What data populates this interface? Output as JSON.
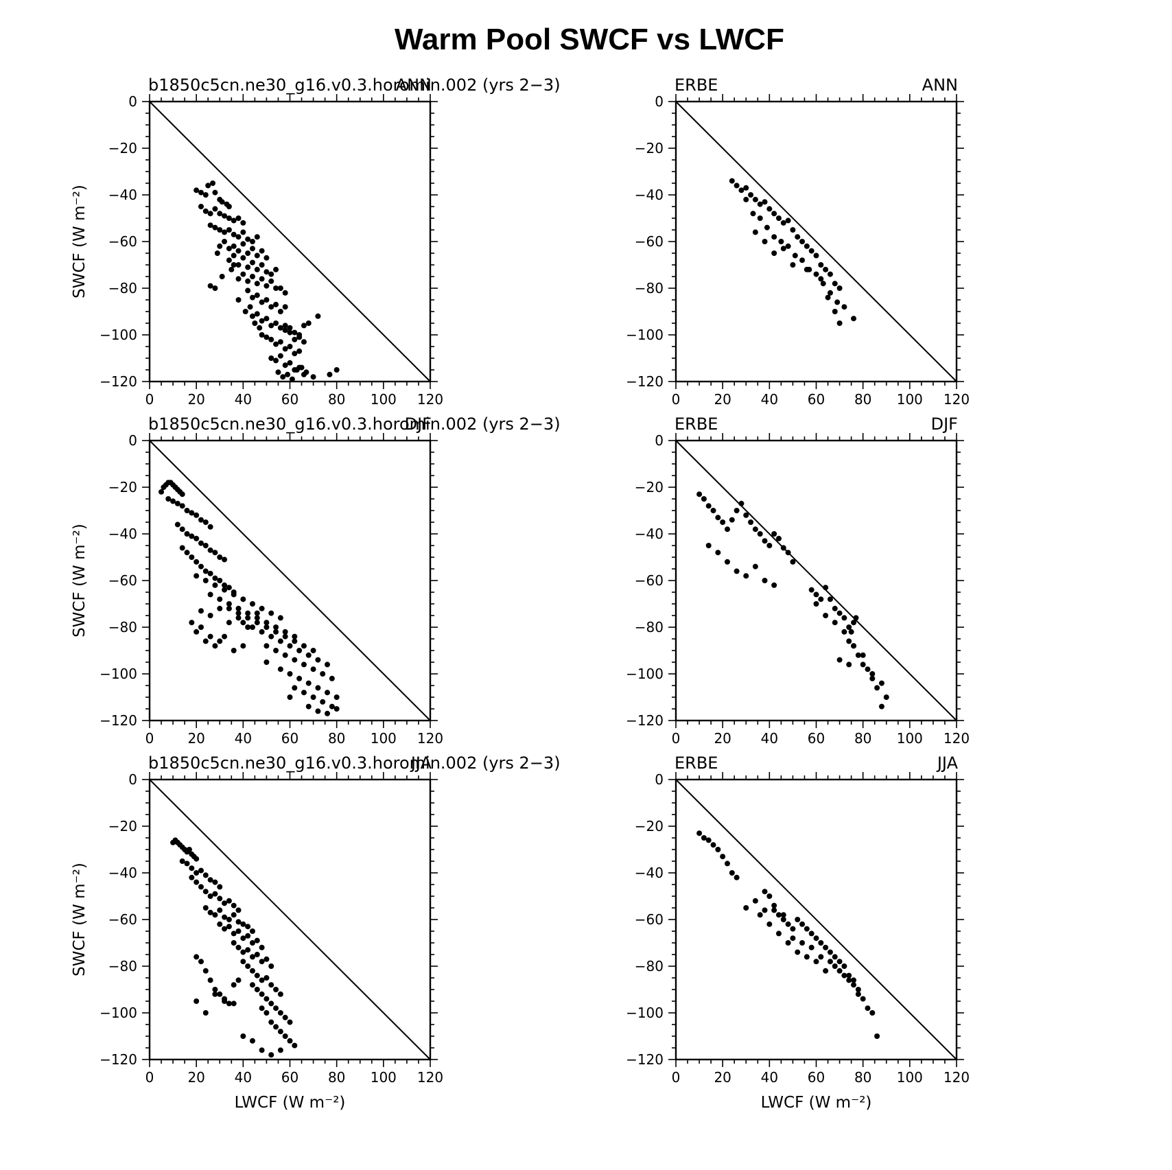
{
  "figure": {
    "title": "Warm Pool SWCF vs LWCF"
  },
  "chart_data": [
    {
      "type": "scatter",
      "panel": "model-ANN",
      "left_label": "b1850c5cn.ne30_g16.v0.3.horomin.002 (yrs 2−3)",
      "right_label": "ANN",
      "xlabel": "",
      "ylabel": "SWCF (W m⁻²)",
      "xlim": [
        0,
        120
      ],
      "ylim": [
        -120,
        0
      ],
      "xticks": [
        "0",
        "20",
        "40",
        "60",
        "80",
        "100",
        "120"
      ],
      "yticks": [
        "0",
        "−20",
        "−40",
        "−60",
        "−80",
        "−100",
        "−120"
      ],
      "one_to_one_line": true,
      "x": [
        20,
        22,
        24,
        25,
        27,
        28,
        30,
        31,
        33,
        34,
        22,
        24,
        26,
        28,
        30,
        32,
        34,
        36,
        38,
        40,
        26,
        28,
        30,
        32,
        34,
        36,
        38,
        40,
        42,
        44,
        46,
        30,
        32,
        34,
        36,
        38,
        40,
        42,
        44,
        46,
        48,
        50,
        34,
        36,
        38,
        40,
        42,
        44,
        46,
        48,
        50,
        52,
        54,
        38,
        40,
        42,
        44,
        46,
        48,
        50,
        52,
        54,
        56,
        58,
        42,
        44,
        46,
        48,
        50,
        52,
        54,
        56,
        58,
        44,
        46,
        48,
        50,
        52,
        54,
        56,
        58,
        60,
        48,
        50,
        52,
        54,
        56,
        58,
        60,
        62,
        64,
        52,
        54,
        56,
        58,
        60,
        62,
        64,
        66,
        70,
        55,
        57,
        59,
        61,
        63,
        65,
        67,
        58,
        60,
        62,
        64,
        66,
        68,
        62,
        64,
        66,
        72,
        77,
        80,
        28,
        31,
        35,
        38,
        41,
        45,
        47,
        36,
        43,
        29,
        26
      ],
      "y": [
        -38,
        -39,
        -40,
        -36,
        -35,
        -39,
        -42,
        -43,
        -44,
        -45,
        -45,
        -47,
        -48,
        -46,
        -48,
        -49,
        -50,
        -51,
        -50,
        -52,
        -53,
        -54,
        -55,
        -56,
        -55,
        -57,
        -58,
        -56,
        -59,
        -60,
        -58,
        -62,
        -60,
        -63,
        -62,
        -64,
        -61,
        -65,
        -63,
        -66,
        -64,
        -67,
        -68,
        -66,
        -70,
        -67,
        -71,
        -69,
        -72,
        -70,
        -73,
        -74,
        -72,
        -76,
        -74,
        -77,
        -75,
        -78,
        -76,
        -79,
        -77,
        -80,
        -80,
        -82,
        -81,
        -84,
        -83,
        -86,
        -85,
        -88,
        -87,
        -90,
        -88,
        -92,
        -91,
        -94,
        -93,
        -96,
        -95,
        -97,
        -96,
        -99,
        -100,
        -101,
        -102,
        -104,
        -103,
        -106,
        -105,
        -108,
        -107,
        -110,
        -111,
        -109,
        -113,
        -112,
        -115,
        -114,
        -117,
        -118,
        -116,
        -118,
        -117,
        -119,
        -115,
        -114,
        -116,
        -98,
        -97,
        -99,
        -100,
        -96,
        -95,
        -102,
        -101,
        -103,
        -92,
        -117,
        -115,
        -80,
        -75,
        -72,
        -85,
        -90,
        -95,
        -97,
        -70,
        -88,
        -65,
        -79
      ]
    },
    {
      "type": "scatter",
      "panel": "obs-ANN",
      "left_label": "ERBE",
      "right_label": "ANN",
      "xlabel": "",
      "ylabel": "",
      "xlim": [
        0,
        120
      ],
      "ylim": [
        -120,
        0
      ],
      "xticks": [
        "0",
        "20",
        "40",
        "60",
        "80",
        "100",
        "120"
      ],
      "yticks": [
        "0",
        "−20",
        "−40",
        "−60",
        "−80",
        "−100",
        "−120"
      ],
      "one_to_one_line": true,
      "x": [
        24,
        26,
        28,
        30,
        32,
        34,
        36,
        38,
        40,
        42,
        44,
        46,
        48,
        50,
        52,
        54,
        56,
        58,
        60,
        62,
        64,
        66,
        68,
        70,
        30,
        33,
        36,
        39,
        42,
        45,
        48,
        51,
        54,
        57,
        60,
        63,
        66,
        69,
        72,
        76,
        34,
        38,
        42,
        46,
        50,
        56,
        62,
        65,
        68,
        70
      ],
      "y": [
        -34,
        -36,
        -38,
        -37,
        -40,
        -42,
        -44,
        -43,
        -46,
        -48,
        -50,
        -52,
        -51,
        -55,
        -58,
        -60,
        -62,
        -64,
        -66,
        -70,
        -72,
        -74,
        -78,
        -80,
        -42,
        -48,
        -50,
        -54,
        -58,
        -60,
        -62,
        -66,
        -68,
        -72,
        -74,
        -78,
        -82,
        -86,
        -88,
        -93,
        -56,
        -60,
        -65,
        -63,
        -70,
        -72,
        -76,
        -84,
        -90,
        -95
      ]
    },
    {
      "type": "scatter",
      "panel": "model-DJF",
      "left_label": "b1850c5cn.ne30_g16.v0.3.horomin.002 (yrs 2−3)",
      "right_label": "DJF",
      "xlabel": "",
      "ylabel": "SWCF (W m⁻²)",
      "xlim": [
        0,
        120
      ],
      "ylim": [
        -120,
        0
      ],
      "xticks": [
        "0",
        "20",
        "40",
        "60",
        "80",
        "100",
        "120"
      ],
      "yticks": [
        "0",
        "−20",
        "−40",
        "−60",
        "−80",
        "−100",
        "−120"
      ],
      "one_to_one_line": true,
      "x": [
        5,
        6,
        7,
        8,
        9,
        10,
        11,
        12,
        13,
        14,
        8,
        10,
        12,
        14,
        16,
        18,
        20,
        22,
        24,
        26,
        12,
        14,
        16,
        18,
        20,
        22,
        24,
        26,
        28,
        30,
        32,
        14,
        16,
        18,
        20,
        22,
        24,
        26,
        28,
        30,
        32,
        34,
        36,
        20,
        24,
        28,
        32,
        36,
        40,
        44,
        48,
        52,
        56,
        26,
        30,
        34,
        38,
        42,
        46,
        50,
        54,
        58,
        62,
        34,
        38,
        42,
        46,
        50,
        54,
        58,
        62,
        66,
        70,
        40,
        44,
        48,
        52,
        56,
        60,
        64,
        68,
        72,
        76,
        50,
        54,
        58,
        62,
        66,
        70,
        74,
        78,
        56,
        60,
        64,
        68,
        72,
        76,
        80,
        62,
        66,
        70,
        74,
        78,
        68,
        72,
        76,
        80,
        22,
        26,
        30,
        34,
        38,
        42,
        46,
        20,
        24,
        28,
        32,
        36,
        18,
        22,
        26,
        30,
        40,
        50,
        60
      ],
      "y": [
        -22,
        -20,
        -19,
        -18,
        -18,
        -19,
        -20,
        -21,
        -22,
        -23,
        -25,
        -26,
        -27,
        -28,
        -30,
        -31,
        -32,
        -34,
        -35,
        -37,
        -36,
        -38,
        -40,
        -41,
        -42,
        -44,
        -45,
        -47,
        -48,
        -50,
        -51,
        -46,
        -48,
        -50,
        -52,
        -54,
        -56,
        -57,
        -59,
        -60,
        -62,
        -63,
        -65,
        -58,
        -60,
        -62,
        -64,
        -66,
        -68,
        -70,
        -72,
        -74,
        -76,
        -66,
        -68,
        -70,
        -72,
        -74,
        -76,
        -78,
        -80,
        -82,
        -84,
        -72,
        -74,
        -76,
        -78,
        -80,
        -82,
        -84,
        -86,
        -88,
        -90,
        -78,
        -80,
        -82,
        -84,
        -86,
        -88,
        -90,
        -92,
        -94,
        -96,
        -88,
        -90,
        -92,
        -94,
        -96,
        -98,
        -100,
        -102,
        -98,
        -100,
        -102,
        -104,
        -106,
        -108,
        -110,
        -106,
        -108,
        -110,
        -112,
        -114,
        -114,
        -116,
        -117,
        -115,
        -73,
        -75,
        -72,
        -78,
        -76,
        -80,
        -74,
        -82,
        -86,
        -88,
        -84,
        -90,
        -78,
        -80,
        -84,
        -86,
        -88,
        -95,
        -110
      ]
    },
    {
      "type": "scatter",
      "panel": "obs-DJF",
      "left_label": "ERBE",
      "right_label": "DJF",
      "xlabel": "",
      "ylabel": "",
      "xlim": [
        0,
        120
      ],
      "ylim": [
        -120,
        0
      ],
      "xticks": [
        "0",
        "20",
        "40",
        "60",
        "80",
        "100",
        "120"
      ],
      "yticks": [
        "0",
        "−20",
        "−40",
        "−60",
        "−80",
        "−100",
        "−120"
      ],
      "one_to_one_line": true,
      "x": [
        10,
        12,
        14,
        16,
        18,
        20,
        22,
        24,
        26,
        28,
        30,
        32,
        34,
        36,
        38,
        40,
        42,
        44,
        46,
        48,
        50,
        14,
        18,
        22,
        26,
        30,
        34,
        38,
        42,
        58,
        60,
        62,
        64,
        66,
        68,
        70,
        72,
        74,
        75,
        76,
        77,
        74,
        76,
        78,
        80,
        82,
        84,
        86,
        88,
        90,
        60,
        64,
        68,
        72,
        76,
        80,
        84,
        88,
        70,
        74
      ],
      "y": [
        -23,
        -25,
        -28,
        -30,
        -33,
        -35,
        -38,
        -34,
        -30,
        -27,
        -32,
        -35,
        -38,
        -40,
        -43,
        -45,
        -40,
        -42,
        -46,
        -48,
        -52,
        -45,
        -48,
        -52,
        -56,
        -58,
        -54,
        -60,
        -62,
        -64,
        -66,
        -68,
        -63,
        -68,
        -72,
        -74,
        -76,
        -80,
        -82,
        -78,
        -76,
        -86,
        -88,
        -92,
        -96,
        -98,
        -102,
        -106,
        -104,
        -110,
        -70,
        -75,
        -78,
        -82,
        -88,
        -92,
        -100,
        -114,
        -94,
        -96
      ]
    },
    {
      "type": "scatter",
      "panel": "model-JJA",
      "left_label": "b1850c5cn.ne30_g16.v0.3.horomin.002 (yrs 2−3)",
      "right_label": "JJA",
      "xlabel": "LWCF (W m⁻²)",
      "ylabel": "SWCF (W m⁻²)",
      "xlim": [
        0,
        120
      ],
      "ylim": [
        -120,
        0
      ],
      "xticks": [
        "0",
        "20",
        "40",
        "60",
        "80",
        "100",
        "120"
      ],
      "yticks": [
        "0",
        "−20",
        "−40",
        "−60",
        "−80",
        "−100",
        "−120"
      ],
      "one_to_one_line": true,
      "x": [
        10,
        11,
        12,
        13,
        14,
        15,
        16,
        17,
        18,
        19,
        20,
        14,
        16,
        18,
        20,
        22,
        24,
        26,
        28,
        30,
        18,
        20,
        22,
        24,
        26,
        28,
        30,
        32,
        34,
        36,
        38,
        24,
        26,
        28,
        30,
        32,
        34,
        36,
        38,
        40,
        42,
        44,
        30,
        32,
        34,
        36,
        38,
        40,
        42,
        44,
        46,
        48,
        36,
        38,
        40,
        42,
        44,
        46,
        48,
        50,
        52,
        40,
        42,
        44,
        46,
        48,
        50,
        52,
        54,
        56,
        44,
        46,
        48,
        50,
        52,
        54,
        56,
        58,
        60,
        48,
        50,
        52,
        54,
        56,
        58,
        60,
        62,
        20,
        22,
        24,
        26,
        28,
        30,
        32,
        34,
        36,
        38,
        20,
        24,
        28,
        32,
        36,
        40,
        44,
        48,
        52,
        56
      ],
      "y": [
        -27,
        -26,
        -27,
        -28,
        -29,
        -30,
        -31,
        -30,
        -32,
        -33,
        -34,
        -35,
        -36,
        -38,
        -40,
        -39,
        -41,
        -43,
        -44,
        -46,
        -42,
        -44,
        -46,
        -48,
        -50,
        -49,
        -51,
        -53,
        -52,
        -54,
        -56,
        -55,
        -57,
        -58,
        -56,
        -59,
        -60,
        -58,
        -61,
        -62,
        -63,
        -65,
        -62,
        -64,
        -63,
        -66,
        -65,
        -68,
        -67,
        -70,
        -69,
        -72,
        -70,
        -72,
        -74,
        -73,
        -76,
        -75,
        -78,
        -77,
        -80,
        -78,
        -80,
        -82,
        -84,
        -86,
        -85,
        -88,
        -90,
        -92,
        -88,
        -90,
        -92,
        -94,
        -96,
        -98,
        -100,
        -102,
        -104,
        -98,
        -100,
        -104,
        -106,
        -108,
        -110,
        -112,
        -114,
        -76,
        -78,
        -82,
        -86,
        -90,
        -92,
        -94,
        -96,
        -88,
        -86,
        -95,
        -100,
        -92,
        -95,
        -96,
        -110,
        -112,
        -116,
        -118,
        -116
      ]
    },
    {
      "type": "scatter",
      "panel": "obs-JJA",
      "left_label": "ERBE",
      "right_label": "JJA",
      "xlabel": "LWCF (W m⁻²)",
      "ylabel": "",
      "xlim": [
        0,
        120
      ],
      "ylim": [
        -120,
        0
      ],
      "xticks": [
        "0",
        "20",
        "40",
        "60",
        "80",
        "100",
        "120"
      ],
      "yticks": [
        "0",
        "−20",
        "−40",
        "−60",
        "−80",
        "−100",
        "−120"
      ],
      "one_to_one_line": true,
      "x": [
        10,
        12,
        14,
        16,
        18,
        20,
        22,
        24,
        26,
        30,
        34,
        38,
        40,
        42,
        44,
        46,
        48,
        50,
        52,
        54,
        56,
        58,
        60,
        62,
        64,
        66,
        68,
        70,
        72,
        74,
        76,
        78,
        80,
        82,
        84,
        86,
        36,
        40,
        44,
        48,
        52,
        56,
        60,
        64,
        68,
        72,
        76,
        50,
        54,
        58,
        62,
        66,
        70,
        74,
        78,
        38,
        42,
        46
      ],
      "y": [
        -23,
        -25,
        -26,
        -28,
        -30,
        -33,
        -36,
        -40,
        -42,
        -55,
        -52,
        -56,
        -50,
        -54,
        -58,
        -60,
        -62,
        -64,
        -60,
        -62,
        -64,
        -66,
        -68,
        -70,
        -72,
        -74,
        -76,
        -78,
        -80,
        -84,
        -86,
        -90,
        -94,
        -98,
        -100,
        -110,
        -58,
        -62,
        -66,
        -70,
        -74,
        -76,
        -78,
        -82,
        -80,
        -84,
        -88,
        -68,
        -70,
        -72,
        -76,
        -78,
        -82,
        -86,
        -92,
        -48,
        -56,
        -58
      ]
    }
  ]
}
